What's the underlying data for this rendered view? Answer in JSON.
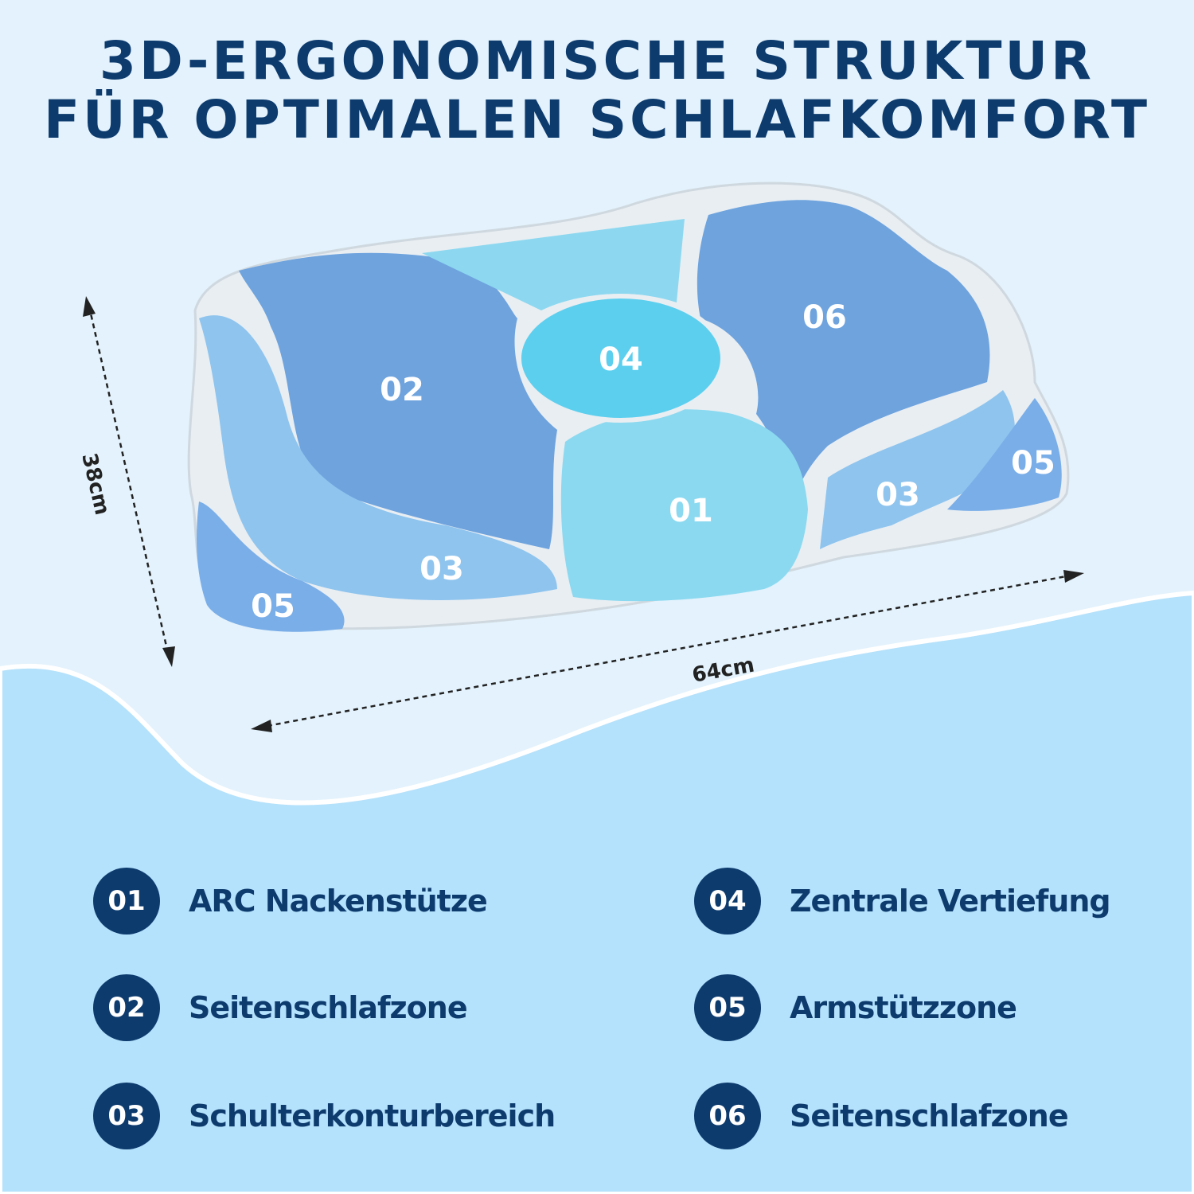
{
  "title": {
    "line1": "3D-ERGONOMISCHE STRUKTUR",
    "line2": "FÜR OPTIMALEN SCHLAFKOMFORT"
  },
  "dimensions": {
    "height": "38cm",
    "width": "64cm"
  },
  "zones_on_pillow": {
    "z01": "01",
    "z02": "02",
    "z03a": "03",
    "z03b": "03",
    "z04": "04",
    "z05a": "05",
    "z05b": "05",
    "z06": "06"
  },
  "legend": [
    {
      "num": "01",
      "label": "ARC Nackenstütze"
    },
    {
      "num": "02",
      "label": "Seitenschlafzone"
    },
    {
      "num": "03",
      "label": "Schulterkonturbereich"
    },
    {
      "num": "04",
      "label": "Zentrale Vertiefung"
    },
    {
      "num": "05",
      "label": "Armstützzone"
    },
    {
      "num": "06",
      "label": "Seitenschlafzone"
    }
  ],
  "colors": {
    "navy": "#0d3b6e",
    "background_top": "#e3f2fc",
    "background_bottom": "#b4e1fb"
  }
}
